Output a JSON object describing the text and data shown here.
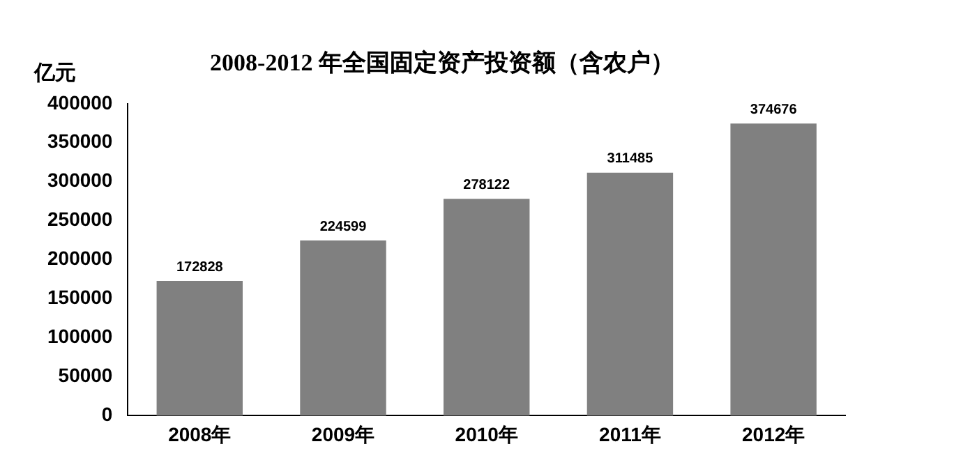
{
  "chart_data": {
    "type": "bar",
    "title": "2008-2012 年全国固定资产投资额（含农户）",
    "ylabel": "亿元",
    "categories": [
      "2008年",
      "2009年",
      "2010年",
      "2011年",
      "2012年"
    ],
    "values": [
      172828,
      224599,
      278122,
      311485,
      374676
    ],
    "color": "#808080",
    "ylim": [
      0,
      400000
    ],
    "yticks": [
      0,
      50000,
      100000,
      150000,
      200000,
      250000,
      300000,
      350000,
      400000
    ],
    "grid": false,
    "legend": false,
    "data_labels": true
  }
}
